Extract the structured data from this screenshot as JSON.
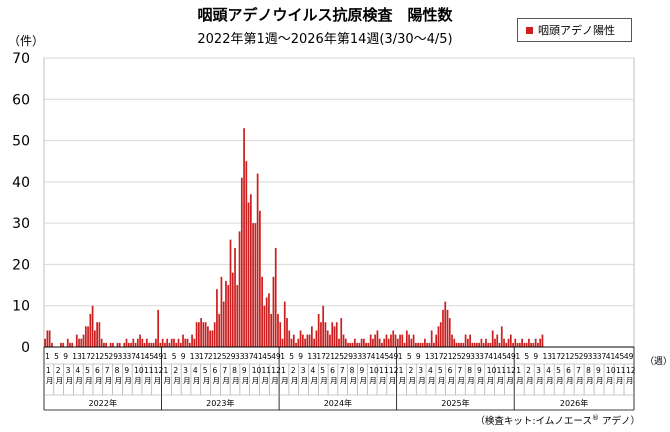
{
  "title": "咽頭アデノウイルス抗原検査　陽性数",
  "subtitle": "2022年第1週～2026年第14週(3/30～4/5)",
  "colors": {
    "bar": "#cc1f1f",
    "grid": "#d9d9d9",
    "axis": "#000000"
  },
  "footer": {
    "note_prefix": "（検査キット:イムノエース",
    "note_reg": "®",
    "note_suffix": "  アデノ）"
  },
  "chart_data": {
    "type": "bar",
    "title": "咽頭アデノウイルス抗原検査　陽性数",
    "subtitle": "2022年第1週～2026年第14週(3/30～4/5)",
    "ylabel": "（件）",
    "xunit": "（週）",
    "ylim": [
      0,
      70
    ],
    "yticks": [
      0,
      10,
      20,
      30,
      40,
      50,
      60,
      70
    ],
    "grid": true,
    "legend": {
      "entries": [
        "咽頭アデノ陽性"
      ],
      "placement": "top-right"
    },
    "week_tick_labels": [
      "1",
      "5",
      "9",
      "13",
      "17",
      "21",
      "25",
      "29",
      "33",
      "37",
      "41",
      "45",
      "49"
    ],
    "month_labels": [
      "1月",
      "2月",
      "3月",
      "4月",
      "5月",
      "6月",
      "7月",
      "8月",
      "9月",
      "10月",
      "11月",
      "12月"
    ],
    "years": [
      {
        "label": "2022年",
        "weeks": 52
      },
      {
        "label": "2023年",
        "weeks": 52
      },
      {
        "label": "2024年",
        "weeks": 52
      },
      {
        "label": "2025年",
        "weeks": 52
      },
      {
        "label": "2026年",
        "weeks": 53
      }
    ],
    "series": [
      {
        "name": "咽頭アデノ陽性",
        "values": [
          2,
          4,
          4,
          1,
          0,
          0,
          0,
          1,
          1,
          0,
          2,
          1,
          1,
          0,
          3,
          2,
          2,
          3,
          5,
          5,
          8,
          10,
          4,
          6,
          6,
          2,
          1,
          1,
          0,
          1,
          1,
          0,
          1,
          1,
          0,
          1,
          2,
          1,
          1,
          2,
          1,
          2,
          3,
          2,
          1,
          2,
          1,
          1,
          1,
          2,
          9,
          1,
          2,
          1,
          2,
          1,
          2,
          2,
          1,
          2,
          1,
          3,
          2,
          2,
          1,
          3,
          2,
          6,
          6,
          7,
          6,
          6,
          5,
          4,
          4,
          6,
          14,
          8,
          17,
          11,
          16,
          15,
          26,
          18,
          24,
          15,
          28,
          41,
          53,
          45,
          35,
          37,
          30,
          30,
          42,
          33,
          17,
          10,
          12,
          13,
          8,
          17,
          24,
          8,
          6,
          2,
          11,
          7,
          4,
          2,
          3,
          1,
          2,
          4,
          3,
          2,
          3,
          3,
          5,
          2,
          4,
          8,
          6,
          10,
          6,
          4,
          3,
          6,
          5,
          6,
          2,
          7,
          3,
          2,
          1,
          1,
          1,
          2,
          1,
          1,
          2,
          2,
          1,
          1,
          3,
          2,
          3,
          4,
          2,
          1,
          2,
          3,
          2,
          3,
          4,
          3,
          2,
          3,
          3,
          1,
          4,
          3,
          2,
          3,
          1,
          1,
          1,
          1,
          2,
          1,
          1,
          4,
          1,
          3,
          5,
          6,
          9,
          11,
          9,
          7,
          3,
          2,
          1,
          1,
          1,
          1,
          3,
          2,
          3,
          1,
          1,
          1,
          1,
          2,
          1,
          2,
          1,
          1,
          4,
          2,
          3,
          1,
          5,
          2,
          1,
          2,
          3,
          1,
          2,
          1,
          1,
          2,
          1,
          1,
          2,
          1,
          1,
          2,
          1,
          2,
          3,
          0,
          0,
          0,
          0,
          0,
          0,
          0,
          0,
          0,
          0,
          0,
          0,
          0,
          0,
          0,
          0,
          0,
          0,
          0,
          0,
          0,
          0,
          0,
          0,
          0,
          0,
          0,
          0,
          0,
          0,
          0,
          0,
          0,
          0,
          0,
          0,
          0,
          0,
          0,
          0
        ]
      }
    ]
  }
}
